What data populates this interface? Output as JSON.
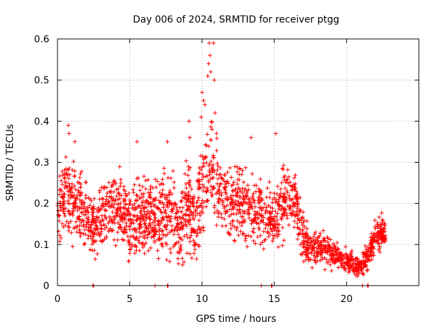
{
  "chart_data": {
    "type": "scatter",
    "title": "Day 006 of 2024, SRMTID for receiver ptgg",
    "xlabel": "GPS time / hours",
    "ylabel": "SRMTID / TECUs",
    "xlim": [
      0,
      25
    ],
    "ylim": [
      0,
      0.6
    ],
    "x_ticks": [
      0,
      5,
      10,
      15,
      20
    ],
    "y_ticks": [
      0,
      0.1,
      0.2,
      0.3,
      0.4,
      0.5,
      0.6
    ],
    "x_tick_labels": [
      "0",
      "5",
      "10",
      "15",
      "20"
    ],
    "y_tick_labels": [
      "0",
      "0.1",
      "0.2",
      "0.3",
      "0.4",
      "0.5",
      "0.6"
    ],
    "grid": true,
    "marker": "plus",
    "color": "#ff0000",
    "series": [
      {
        "name": "SRMTID",
        "profile": [
          [
            0.0,
            0.18,
            0.08
          ],
          [
            0.5,
            0.22,
            0.08
          ],
          [
            1.0,
            0.2,
            0.09
          ],
          [
            1.5,
            0.18,
            0.08
          ],
          [
            2.0,
            0.17,
            0.07
          ],
          [
            2.5,
            0.13,
            0.06
          ],
          [
            3.0,
            0.17,
            0.07
          ],
          [
            3.5,
            0.19,
            0.07
          ],
          [
            4.0,
            0.2,
            0.08
          ],
          [
            4.5,
            0.18,
            0.08
          ],
          [
            5.0,
            0.14,
            0.08
          ],
          [
            5.5,
            0.16,
            0.09
          ],
          [
            6.0,
            0.16,
            0.09
          ],
          [
            6.5,
            0.17,
            0.08
          ],
          [
            7.0,
            0.16,
            0.09
          ],
          [
            7.5,
            0.18,
            0.1
          ],
          [
            8.0,
            0.17,
            0.09
          ],
          [
            8.5,
            0.14,
            0.07
          ],
          [
            9.0,
            0.2,
            0.1
          ],
          [
            9.5,
            0.15,
            0.08
          ],
          [
            10.0,
            0.23,
            0.12
          ],
          [
            10.5,
            0.27,
            0.12
          ],
          [
            11.0,
            0.25,
            0.11
          ],
          [
            11.5,
            0.2,
            0.08
          ],
          [
            12.0,
            0.2,
            0.09
          ],
          [
            12.5,
            0.22,
            0.09
          ],
          [
            13.0,
            0.19,
            0.09
          ],
          [
            13.5,
            0.18,
            0.09
          ],
          [
            14.0,
            0.2,
            0.08
          ],
          [
            14.5,
            0.17,
            0.08
          ],
          [
            15.0,
            0.16,
            0.08
          ],
          [
            15.5,
            0.18,
            0.08
          ],
          [
            16.0,
            0.22,
            0.07
          ],
          [
            16.5,
            0.2,
            0.06
          ],
          [
            17.0,
            0.12,
            0.06
          ],
          [
            17.5,
            0.09,
            0.04
          ],
          [
            18.0,
            0.09,
            0.04
          ],
          [
            18.5,
            0.09,
            0.04
          ],
          [
            19.0,
            0.08,
            0.04
          ],
          [
            19.5,
            0.07,
            0.03
          ],
          [
            20.0,
            0.06,
            0.03
          ],
          [
            20.5,
            0.05,
            0.025
          ],
          [
            21.0,
            0.05,
            0.025
          ],
          [
            21.5,
            0.07,
            0.03
          ],
          [
            22.0,
            0.12,
            0.04
          ],
          [
            22.7,
            0.13,
            0.035
          ]
        ],
        "outliers": [
          [
            10.5,
            0.59
          ],
          [
            10.55,
            0.56
          ],
          [
            10.45,
            0.54
          ],
          [
            10.6,
            0.52
          ],
          [
            10.4,
            0.51
          ],
          [
            10.8,
            0.59
          ],
          [
            10.85,
            0.5
          ],
          [
            10.9,
            0.42
          ],
          [
            10.0,
            0.47
          ],
          [
            10.1,
            0.45
          ],
          [
            10.2,
            0.44
          ],
          [
            9.95,
            0.41
          ],
          [
            9.1,
            0.4
          ],
          [
            0.75,
            0.39
          ],
          [
            0.8,
            0.37
          ],
          [
            15.1,
            0.37
          ],
          [
            10.7,
            0.38
          ],
          [
            11.0,
            0.37
          ],
          [
            1.2,
            0.35
          ],
          [
            5.5,
            0.35
          ],
          [
            7.6,
            0.35
          ],
          [
            9.15,
            0.36
          ],
          [
            13.4,
            0.36
          ],
          [
            10.3,
            0.34
          ]
        ],
        "zero_points": [
          [
            2.45,
            0
          ],
          [
            2.5,
            0
          ],
          [
            6.75,
            0
          ],
          [
            7.6,
            0
          ],
          [
            7.65,
            0
          ],
          [
            14.1,
            0
          ],
          [
            14.8,
            0
          ],
          [
            14.85,
            0
          ],
          [
            21.1,
            0
          ],
          [
            21.45,
            0
          ],
          [
            21.5,
            0
          ]
        ]
      }
    ]
  }
}
